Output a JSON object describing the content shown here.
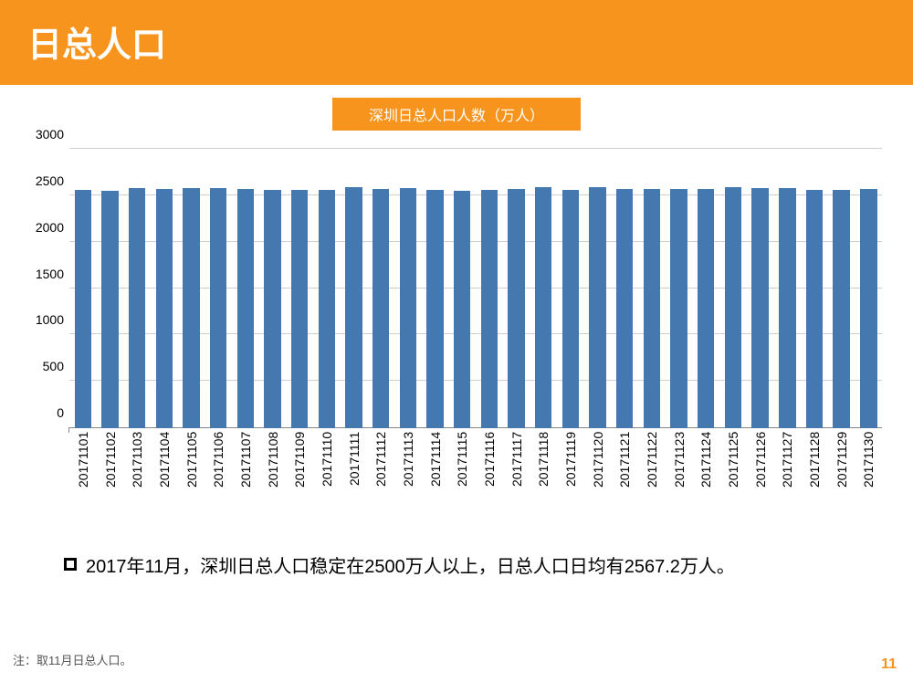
{
  "header": {
    "title": "日总人口",
    "bg_color": "#f7941d",
    "text_color": "#ffffff",
    "fontsize": 38
  },
  "subtitle": {
    "text": "深圳日总人口人数（万人）",
    "bg_color": "#f7941d",
    "text_color": "#ffffff",
    "fontsize": 16
  },
  "chart": {
    "type": "bar",
    "categories": [
      "20171101",
      "20171102",
      "20171103",
      "20171104",
      "20171105",
      "20171106",
      "20171107",
      "20171108",
      "20171109",
      "20171110",
      "20171111",
      "20171112",
      "20171113",
      "20171114",
      "20171115",
      "20171116",
      "20171117",
      "20171118",
      "20171119",
      "20171120",
      "20171121",
      "20171122",
      "20171123",
      "20171124",
      "20171125",
      "20171126",
      "20171127",
      "20171128",
      "20171129",
      "20171130"
    ],
    "values": [
      2560,
      2550,
      2575,
      2570,
      2575,
      2575,
      2565,
      2555,
      2560,
      2560,
      2590,
      2570,
      2575,
      2560,
      2545,
      2560,
      2570,
      2590,
      2555,
      2590,
      2570,
      2570,
      2570,
      2570,
      2590,
      2575,
      2575,
      2560,
      2560,
      2570
    ],
    "bar_color": "#4678b0",
    "bar_width_ratio": 0.62,
    "ylim": [
      0,
      3000
    ],
    "ytick_step": 500,
    "y_ticks": [
      0,
      500,
      1000,
      1500,
      2000,
      2500,
      3000
    ],
    "grid_color": "#cfcfcf",
    "axis_color": "#888888",
    "tick_fontsize": 14,
    "xtick_fontsize": 14,
    "background_color": "#ffffff"
  },
  "bullet": {
    "text": "2017年11月，深圳日总人口稳定在2500万人以上，日总人口日均有2567.2万人。",
    "fontsize": 20,
    "color": "#000000"
  },
  "footnote": {
    "text": "注：取11月日总人口。",
    "fontsize": 13,
    "color": "#555555"
  },
  "page_number": {
    "text": "11",
    "color": "#f7941d",
    "fontsize": 16
  }
}
